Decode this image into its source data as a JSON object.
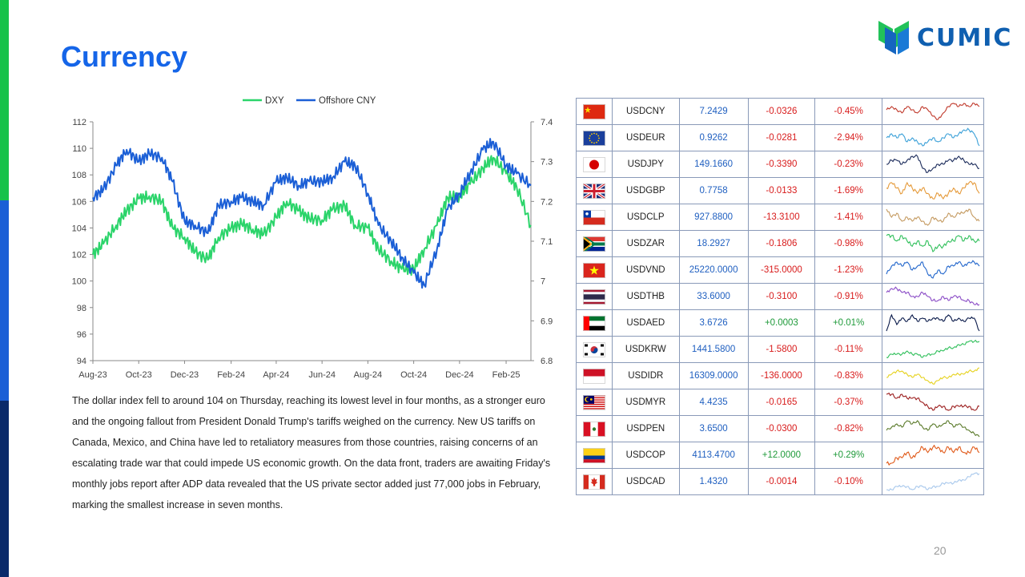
{
  "page": {
    "title": "Currency",
    "page_number": "20",
    "brand": "CUMIC",
    "commentary": "The dollar index fell to around 104 on Thursday, reaching its lowest level in four months, as a stronger euro and the ongoing fallout from President Donald Trump's tariffs weighed on the currency. New US tariffs on Canada, Mexico, and China have led to retaliatory measures from those countries, raising concerns of an escalating trade war that could impede US economic growth. On the data front, traders are awaiting Friday's monthly jobs report after ADP data revealed that the US private sector added just 77,000 jobs in February, marking the smallest increase in seven months."
  },
  "colors": {
    "accent_title": "#1565e8",
    "dxy_line": "#2bd46a",
    "cny_line": "#1b5fd6",
    "negative": "#d81b1b",
    "positive": "#1f9a3a",
    "price": "#1f5fc0"
  },
  "chart_data": {
    "type": "line",
    "title": "",
    "xlabel": "",
    "ylabel": "",
    "legend_position": "top-center",
    "grid": false,
    "x_ticks": [
      "Aug-23",
      "Oct-23",
      "Dec-23",
      "Feb-24",
      "Apr-24",
      "Jun-24",
      "Aug-24",
      "Oct-24",
      "Dec-24",
      "Feb-25"
    ],
    "y_left": {
      "ticks": [
        94,
        96,
        98,
        100,
        102,
        104,
        106,
        108,
        110,
        112
      ],
      "range": [
        94,
        112
      ]
    },
    "y_right": {
      "ticks": [
        6.8,
        6.9,
        7,
        7.1,
        7.2,
        7.3,
        7.4
      ],
      "range": [
        6.8,
        7.4
      ]
    },
    "x": [
      "2023-08-01",
      "2023-08-15",
      "2023-09-01",
      "2023-09-15",
      "2023-10-01",
      "2023-10-15",
      "2023-11-01",
      "2023-11-15",
      "2023-12-01",
      "2023-12-15",
      "2024-01-01",
      "2024-01-15",
      "2024-02-01",
      "2024-02-15",
      "2024-03-01",
      "2024-03-15",
      "2024-04-01",
      "2024-04-15",
      "2024-05-01",
      "2024-05-15",
      "2024-06-01",
      "2024-06-15",
      "2024-07-01",
      "2024-07-15",
      "2024-08-01",
      "2024-08-15",
      "2024-09-01",
      "2024-09-15",
      "2024-10-01",
      "2024-10-15",
      "2024-11-01",
      "2024-11-15",
      "2024-12-01",
      "2024-12-15",
      "2025-01-01",
      "2025-01-15",
      "2025-02-01",
      "2025-02-15",
      "2025-03-06"
    ],
    "series": [
      {
        "name": "DXY",
        "axis": "left",
        "values": [
          102.0,
          102.8,
          104.2,
          105.3,
          106.2,
          106.4,
          106.0,
          104.0,
          103.3,
          102.2,
          101.6,
          103.3,
          104.0,
          104.3,
          103.9,
          103.5,
          104.8,
          106.0,
          105.3,
          104.7,
          104.6,
          105.4,
          105.7,
          104.2,
          104.0,
          102.4,
          101.5,
          100.9,
          100.9,
          102.4,
          104.2,
          106.3,
          106.4,
          107.3,
          108.5,
          109.3,
          108.1,
          107.1,
          104.2
        ]
      },
      {
        "name": "Offshore CNY",
        "axis": "right",
        "values": [
          7.21,
          7.23,
          7.29,
          7.33,
          7.3,
          7.32,
          7.31,
          7.25,
          7.15,
          7.14,
          7.12,
          7.19,
          7.2,
          7.21,
          7.2,
          7.19,
          7.25,
          7.26,
          7.24,
          7.25,
          7.25,
          7.26,
          7.3,
          7.29,
          7.22,
          7.14,
          7.1,
          7.06,
          7.02,
          6.99,
          7.08,
          7.18,
          7.22,
          7.27,
          7.33,
          7.35,
          7.29,
          7.27,
          7.24
        ]
      }
    ]
  },
  "fx_rows": [
    {
      "flag": "cn",
      "code": "USDCNY",
      "price": "7.2429",
      "change": "-0.0326",
      "pct": "-0.45%",
      "dir": "neg",
      "spark_color": "#c0392b",
      "spark": [
        5,
        6,
        5,
        4,
        6,
        5,
        4,
        6,
        5,
        3,
        2,
        4,
        6,
        7,
        6,
        7,
        6,
        7,
        6
      ]
    },
    {
      "flag": "eu",
      "code": "USDEUR",
      "price": "0.9262",
      "change": "-0.0281",
      "pct": "-2.94%",
      "dir": "neg",
      "spark_color": "#3aa0d8",
      "spark": [
        5,
        6,
        5,
        6,
        4,
        5,
        4,
        3,
        4,
        5,
        4,
        5,
        6,
        5,
        6,
        7,
        7,
        6,
        3
      ]
    },
    {
      "flag": "jp",
      "code": "USDJPY",
      "price": "149.1660",
      "change": "-0.3390",
      "pct": "-0.23%",
      "dir": "neg",
      "spark_color": "#1a2a5a",
      "spark": [
        5,
        6,
        6,
        5,
        6,
        7,
        7,
        4,
        3,
        4,
        5,
        5,
        6,
        6,
        7,
        6,
        5,
        5,
        4
      ]
    },
    {
      "flag": "gb",
      "code": "USDGBP",
      "price": "0.7758",
      "change": "-0.0133",
      "pct": "-1.69%",
      "dir": "neg",
      "spark_color": "#e59a3a",
      "spark": [
        5,
        6,
        5,
        4,
        6,
        5,
        4,
        5,
        4,
        3,
        4,
        3,
        4,
        5,
        4,
        5,
        6,
        6,
        4
      ]
    },
    {
      "flag": "cl",
      "code": "USDCLP",
      "price": "927.8800",
      "change": "-13.3100",
      "pct": "-1.41%",
      "dir": "neg",
      "spark_color": "#c49a60",
      "spark": [
        7,
        5,
        6,
        4,
        5,
        4,
        5,
        4,
        3,
        5,
        4,
        4,
        6,
        5,
        6,
        6,
        7,
        5,
        4
      ]
    },
    {
      "flag": "za",
      "code": "USDZAR",
      "price": "18.2927",
      "change": "-0.1806",
      "pct": "-0.98%",
      "dir": "neg",
      "spark_color": "#2fbf5a",
      "spark": [
        6,
        6,
        5,
        6,
        5,
        4,
        5,
        4,
        5,
        3,
        4,
        4,
        5,
        5,
        6,
        5,
        6,
        5,
        5
      ]
    },
    {
      "flag": "vn",
      "code": "USDVND",
      "price": "25220.0000",
      "change": "-315.0000",
      "pct": "-1.23%",
      "dir": "neg",
      "spark_color": "#2266cc",
      "spark": [
        3,
        5,
        6,
        5,
        6,
        4,
        5,
        6,
        3,
        2,
        4,
        3,
        5,
        5,
        6,
        5,
        6,
        6,
        5
      ]
    },
    {
      "flag": "th",
      "code": "USDTHB",
      "price": "33.6000",
      "change": "-0.3100",
      "pct": "-0.91%",
      "dir": "neg",
      "spark_color": "#8a4bc6",
      "spark": [
        6,
        7,
        7,
        6,
        6,
        5,
        5,
        6,
        5,
        4,
        4,
        5,
        4,
        5,
        5,
        4,
        4,
        3,
        3
      ]
    },
    {
      "flag": "ae",
      "code": "USDAED",
      "price": "3.6726",
      "change": "+0.0003",
      "pct": "+0.01%",
      "dir": "pos",
      "spark_color": "#0a1a4a",
      "spark": [
        2,
        7,
        4,
        6,
        5,
        7,
        5,
        6,
        5,
        6,
        6,
        5,
        7,
        5,
        6,
        5,
        6,
        6,
        2
      ]
    },
    {
      "flag": "kr",
      "code": "USDKRW",
      "price": "1441.5800",
      "change": "-1.5800",
      "pct": "-0.11%",
      "dir": "neg",
      "spark_color": "#2fbf5a",
      "spark": [
        2,
        3,
        3,
        3,
        4,
        3,
        3,
        2,
        3,
        3,
        4,
        4,
        5,
        5,
        6,
        6,
        7,
        7,
        7
      ]
    },
    {
      "flag": "id",
      "code": "USDIDR",
      "price": "16309.0000",
      "change": "-136.0000",
      "pct": "-0.83%",
      "dir": "neg",
      "spark_color": "#e6d21e",
      "spark": [
        4,
        5,
        6,
        6,
        5,
        4,
        5,
        4,
        3,
        2,
        3,
        4,
        4,
        5,
        5,
        5,
        6,
        6,
        7
      ]
    },
    {
      "flag": "my",
      "code": "USDMYR",
      "price": "4.4235",
      "change": "-0.0165",
      "pct": "-0.37%",
      "dir": "neg",
      "spark_color": "#9a1a1a",
      "spark": [
        7,
        7,
        6,
        7,
        6,
        6,
        6,
        5,
        4,
        3,
        4,
        4,
        3,
        4,
        4,
        4,
        4,
        3,
        4
      ]
    },
    {
      "flag": "pe",
      "code": "USDPEN",
      "price": "3.6500",
      "change": "-0.0300",
      "pct": "-0.82%",
      "dir": "neg",
      "spark_color": "#5a7a2a",
      "spark": [
        4,
        5,
        6,
        5,
        7,
        6,
        7,
        5,
        4,
        6,
        5,
        6,
        7,
        5,
        6,
        5,
        4,
        3,
        2
      ]
    },
    {
      "flag": "co",
      "code": "USDCOP",
      "price": "4113.4700",
      "change": "+12.0000",
      "pct": "+0.29%",
      "dir": "pos",
      "spark_color": "#e05a1a",
      "spark": [
        3,
        3,
        4,
        4,
        5,
        4,
        5,
        6,
        5,
        6,
        6,
        5,
        6,
        5,
        6,
        5,
        5,
        6,
        5
      ]
    },
    {
      "flag": "ca",
      "code": "USDCAD",
      "price": "1.4320",
      "change": "-0.0014",
      "pct": "-0.10%",
      "dir": "neg",
      "spark_color": "#a8c8ec",
      "spark": [
        2,
        2,
        3,
        3,
        3,
        2,
        3,
        3,
        2,
        3,
        3,
        4,
        4,
        4,
        5,
        5,
        6,
        7,
        7
      ]
    }
  ]
}
